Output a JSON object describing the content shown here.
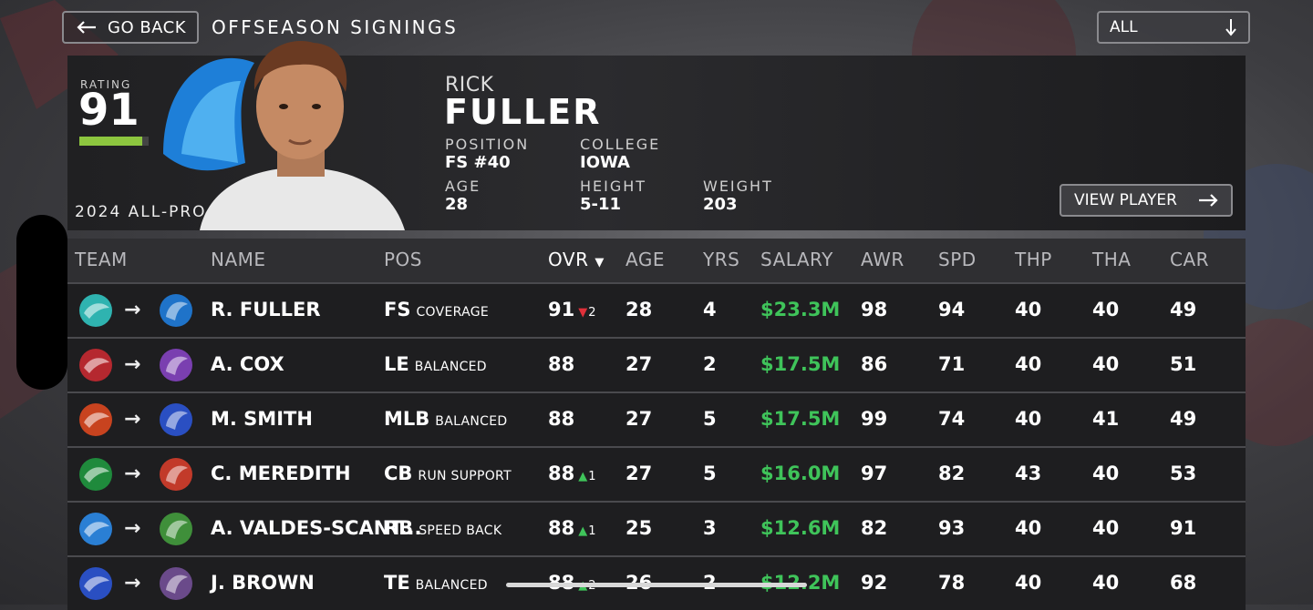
{
  "header": {
    "back_label": "GO BACK",
    "title": "OFFSEASON SIGNINGS",
    "filter_value": "ALL"
  },
  "player": {
    "rating_label": "RATING",
    "rating": "91",
    "rating_fraction": 0.91,
    "award": "2024 ALL-PRO",
    "first_name": "RICK",
    "last_name": "FULLER",
    "position_label": "POSITION",
    "position": "FS #40",
    "college_label": "COLLEGE",
    "college": "IOWA",
    "age_label": "AGE",
    "age": "28",
    "height_label": "HEIGHT",
    "height": "5-11",
    "weight_label": "WEIGHT",
    "weight": "203",
    "view_label": "VIEW PLAYER"
  },
  "table": {
    "columns": [
      "TEAM",
      "NAME",
      "POS",
      "OVR",
      "AGE",
      "YRS",
      "SALARY",
      "AWR",
      "SPD",
      "THP",
      "THA",
      "CAR"
    ],
    "rows": [
      {
        "name": "R. FULLER",
        "pos": "FS",
        "arch": "COVERAGE",
        "ovr": "91",
        "delta": "2",
        "delta_dir": "down",
        "age": "28",
        "yrs": "4",
        "salary": "$23.3M",
        "awr": "98",
        "spd": "94",
        "thp": "40",
        "tha": "40",
        "car": "49",
        "from_color": "#2fb3b0",
        "to_color": "#1f73c9"
      },
      {
        "name": "A. COX",
        "pos": "LE",
        "arch": "BALANCED",
        "ovr": "88",
        "delta": "",
        "delta_dir": "",
        "age": "27",
        "yrs": "2",
        "salary": "$17.5M",
        "awr": "86",
        "spd": "71",
        "thp": "40",
        "tha": "40",
        "car": "51",
        "from_color": "#b5282f",
        "to_color": "#7a3fb0"
      },
      {
        "name": "M. SMITH",
        "pos": "MLB",
        "arch": "BALANCED",
        "ovr": "88",
        "delta": "",
        "delta_dir": "",
        "age": "27",
        "yrs": "5",
        "salary": "$17.5M",
        "awr": "99",
        "spd": "74",
        "thp": "40",
        "tha": "41",
        "car": "49",
        "from_color": "#c8431f",
        "to_color": "#2a4fc2"
      },
      {
        "name": "C. MEREDITH",
        "pos": "CB",
        "arch": "RUN SUPPORT",
        "ovr": "88",
        "delta": "1",
        "delta_dir": "up",
        "age": "27",
        "yrs": "5",
        "salary": "$16.0M",
        "awr": "97",
        "spd": "82",
        "thp": "43",
        "tha": "40",
        "car": "53",
        "from_color": "#1f8a3c",
        "to_color": "#c23a2a"
      },
      {
        "name": "A. VALDES-SCANT...",
        "pos": "RB",
        "arch": "SPEED BACK",
        "ovr": "88",
        "delta": "1",
        "delta_dir": "up",
        "age": "25",
        "yrs": "3",
        "salary": "$12.6M",
        "awr": "82",
        "spd": "93",
        "thp": "40",
        "tha": "40",
        "car": "91",
        "from_color": "#2a7fd4",
        "to_color": "#3f8f3a"
      },
      {
        "name": "J. BROWN",
        "pos": "TE",
        "arch": "BALANCED",
        "ovr": "88",
        "delta": "2",
        "delta_dir": "up",
        "age": "26",
        "yrs": "2",
        "salary": "$12.2M",
        "awr": "92",
        "spd": "78",
        "thp": "40",
        "tha": "40",
        "car": "68",
        "from_color": "#2a4fc2",
        "to_color": "#6a4a8a"
      }
    ]
  },
  "colors": {
    "salary": "#3fc45a",
    "rating_bar": "#8dc63f",
    "delta_up": "#3fc45a",
    "delta_down": "#e0303a"
  }
}
